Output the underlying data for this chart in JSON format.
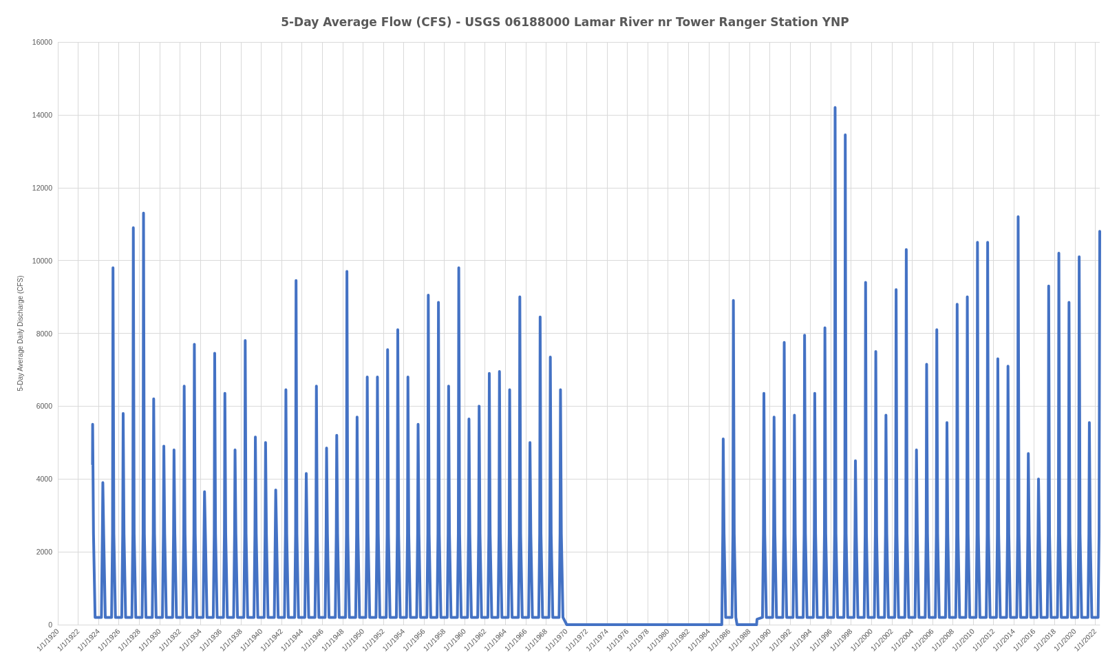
{
  "chart_data": {
    "type": "line",
    "title": "5-Day Average Flow (CFS) - USGS 06188000 Lamar River nr Tower Ranger Station YNP",
    "ylabel": "5-Day Average Daily Discharge (CFS)",
    "xlim": [
      "1920-01-01",
      "2022-06-13"
    ],
    "ylim": [
      0,
      16000
    ],
    "yticks": [
      0,
      2000,
      4000,
      6000,
      8000,
      10000,
      12000,
      14000,
      16000
    ],
    "grid": true,
    "marker": "none",
    "line_style": "solid",
    "xticks": [
      {
        "value": "1920-01-01",
        "label": "1/1/1920"
      },
      {
        "value": "1922-01-01",
        "label": "1/1/1922"
      },
      {
        "value": "1924-01-01",
        "label": "1/1/1924"
      },
      {
        "value": "1926-01-01",
        "label": "1/1/1926"
      },
      {
        "value": "1928-01-01",
        "label": "1/1/1928"
      },
      {
        "value": "1930-01-01",
        "label": "1/1/1930"
      },
      {
        "value": "1932-01-01",
        "label": "1/1/1932"
      },
      {
        "value": "1934-01-01",
        "label": "1/1/1934"
      },
      {
        "value": "1936-01-01",
        "label": "1/1/1936"
      },
      {
        "value": "1938-01-01",
        "label": "1/1/1938"
      },
      {
        "value": "1940-01-01",
        "label": "1/1/1940"
      },
      {
        "value": "1942-01-01",
        "label": "1/1/1942"
      },
      {
        "value": "1944-01-01",
        "label": "1/1/1944"
      },
      {
        "value": "1946-01-01",
        "label": "1/1/1946"
      },
      {
        "value": "1948-01-01",
        "label": "1/1/1948"
      },
      {
        "value": "1950-01-01",
        "label": "1/1/1950"
      },
      {
        "value": "1952-01-01",
        "label": "1/1/1952"
      },
      {
        "value": "1954-01-01",
        "label": "1/1/1954"
      },
      {
        "value": "1956-01-01",
        "label": "1/1/1956"
      },
      {
        "value": "1958-01-01",
        "label": "1/1/1958"
      },
      {
        "value": "1960-01-01",
        "label": "1/1/1960"
      },
      {
        "value": "1962-01-01",
        "label": "1/1/1962"
      },
      {
        "value": "1964-01-01",
        "label": "1/1/1964"
      },
      {
        "value": "1966-01-01",
        "label": "1/1/1966"
      },
      {
        "value": "1968-01-01",
        "label": "1/1/1968"
      },
      {
        "value": "1970-01-01",
        "label": "1/1/1970"
      },
      {
        "value": "1972-01-01",
        "label": "1/1/1972"
      },
      {
        "value": "1974-01-01",
        "label": "1/1/1974"
      },
      {
        "value": "1976-01-01",
        "label": "1/1/1976"
      },
      {
        "value": "1978-01-01",
        "label": "1/1/1978"
      },
      {
        "value": "1980-01-01",
        "label": "1/1/1980"
      },
      {
        "value": "1982-01-01",
        "label": "1/1/1982"
      },
      {
        "value": "1984-01-01",
        "label": "1/1/1984"
      },
      {
        "value": "1986-01-01",
        "label": "1/1/1986"
      },
      {
        "value": "1988-01-01",
        "label": "1/1/1988"
      },
      {
        "value": "1990-01-01",
        "label": "1/1/1990"
      },
      {
        "value": "1992-01-01",
        "label": "1/1/1992"
      },
      {
        "value": "1994-01-01",
        "label": "1/1/1994"
      },
      {
        "value": "1996-01-01",
        "label": "1/1/1996"
      },
      {
        "value": "1998-01-01",
        "label": "1/1/1998"
      },
      {
        "value": "2000-01-01",
        "label": "1/1/2000"
      },
      {
        "value": "2002-01-01",
        "label": "1/1/2002"
      },
      {
        "value": "2004-01-01",
        "label": "1/1/2004"
      },
      {
        "value": "2006-01-01",
        "label": "1/1/2006"
      },
      {
        "value": "2008-01-01",
        "label": "1/1/2008"
      },
      {
        "value": "2010-01-01",
        "label": "1/1/2010"
      },
      {
        "value": "2012-01-01",
        "label": "1/1/2012"
      },
      {
        "value": "2014-01-01",
        "label": "1/1/2014"
      },
      {
        "value": "2016-01-01",
        "label": "1/1/2016"
      },
      {
        "value": "2018-01-01",
        "label": "1/1/2018"
      },
      {
        "value": "2020-01-01",
        "label": "1/1/2020"
      },
      {
        "value": "2022-01-01",
        "label": "1/1/2022"
      }
    ],
    "series": [
      {
        "color": "#4472c4",
        "x": [
          "1923-06-01",
          "1923-06-05",
          "1923-07-05",
          "1923-09-01",
          "1924-04-15",
          "1924-05-20",
          "1924-06-05",
          "1924-07-05",
          "1924-09-01",
          "1925-04-15",
          "1925-05-20",
          "1925-06-05",
          "1925-07-05",
          "1925-09-01",
          "1926-04-15",
          "1926-05-20",
          "1926-06-05",
          "1926-07-05",
          "1926-09-01",
          "1927-04-15",
          "1927-05-20",
          "1927-06-05",
          "1927-07-05",
          "1927-09-01",
          "1928-04-15",
          "1928-05-20",
          "1928-06-05",
          "1928-07-05",
          "1928-09-01",
          "1929-04-15",
          "1929-05-20",
          "1929-06-05",
          "1929-07-05",
          "1929-09-01",
          "1930-04-15",
          "1930-05-20",
          "1930-06-05",
          "1930-07-05",
          "1930-09-01",
          "1931-04-15",
          "1931-05-20",
          "1931-06-05",
          "1931-07-05",
          "1931-09-01",
          "1932-04-15",
          "1932-05-20",
          "1932-06-05",
          "1932-07-05",
          "1932-09-01",
          "1933-04-15",
          "1933-05-20",
          "1933-06-05",
          "1933-07-05",
          "1933-09-01",
          "1934-04-15",
          "1934-05-20",
          "1934-06-05",
          "1934-07-05",
          "1934-09-01",
          "1935-04-15",
          "1935-05-20",
          "1935-06-05",
          "1935-07-05",
          "1935-09-01",
          "1936-04-15",
          "1936-05-20",
          "1936-06-05",
          "1936-07-05",
          "1936-09-01",
          "1937-04-15",
          "1937-05-20",
          "1937-06-05",
          "1937-07-05",
          "1937-09-01",
          "1938-04-15",
          "1938-05-20",
          "1938-06-05",
          "1938-07-05",
          "1938-09-01",
          "1939-04-15",
          "1939-05-20",
          "1939-06-05",
          "1939-07-05",
          "1939-09-01",
          "1940-04-15",
          "1940-05-20",
          "1940-06-05",
          "1940-07-05",
          "1940-09-01",
          "1941-04-15",
          "1941-05-20",
          "1941-06-05",
          "1941-07-05",
          "1941-09-01",
          "1942-04-15",
          "1942-05-20",
          "1942-06-05",
          "1942-07-05",
          "1942-09-01",
          "1943-04-15",
          "1943-05-20",
          "1943-06-05",
          "1943-07-05",
          "1943-09-01",
          "1944-04-15",
          "1944-05-20",
          "1944-06-05",
          "1944-07-05",
          "1944-09-01",
          "1945-04-15",
          "1945-05-20",
          "1945-06-05",
          "1945-07-05",
          "1945-09-01",
          "1946-04-15",
          "1946-05-20",
          "1946-06-05",
          "1946-07-05",
          "1946-09-01",
          "1947-04-15",
          "1947-05-20",
          "1947-06-05",
          "1947-07-05",
          "1947-09-01",
          "1948-04-15",
          "1948-05-20",
          "1948-06-05",
          "1948-07-05",
          "1948-09-01",
          "1949-04-15",
          "1949-05-20",
          "1949-06-05",
          "1949-07-05",
          "1949-09-01",
          "1950-04-15",
          "1950-05-20",
          "1950-06-05",
          "1950-07-05",
          "1950-09-01",
          "1951-04-15",
          "1951-05-20",
          "1951-06-05",
          "1951-07-05",
          "1951-09-01",
          "1952-04-15",
          "1952-05-20",
          "1952-06-05",
          "1952-07-05",
          "1952-09-01",
          "1953-04-15",
          "1953-05-20",
          "1953-06-05",
          "1953-07-05",
          "1953-09-01",
          "1954-04-15",
          "1954-05-20",
          "1954-06-05",
          "1954-07-05",
          "1954-09-01",
          "1955-04-15",
          "1955-05-20",
          "1955-06-05",
          "1955-07-05",
          "1955-09-01",
          "1956-04-15",
          "1956-05-20",
          "1956-06-05",
          "1956-07-05",
          "1956-09-01",
          "1957-04-15",
          "1957-05-20",
          "1957-06-05",
          "1957-07-05",
          "1957-09-01",
          "1958-04-15",
          "1958-05-20",
          "1958-06-05",
          "1958-07-05",
          "1958-09-01",
          "1959-04-15",
          "1959-05-20",
          "1959-06-05",
          "1959-07-05",
          "1959-09-01",
          "1960-04-15",
          "1960-05-20",
          "1960-06-05",
          "1960-07-05",
          "1960-09-01",
          "1961-04-15",
          "1961-05-20",
          "1961-06-05",
          "1961-07-05",
          "1961-09-01",
          "1962-04-15",
          "1962-05-20",
          "1962-06-05",
          "1962-07-05",
          "1962-09-01",
          "1963-04-15",
          "1963-05-20",
          "1963-06-05",
          "1963-07-05",
          "1963-09-01",
          "1964-04-15",
          "1964-05-20",
          "1964-06-05",
          "1964-07-05",
          "1964-09-01",
          "1965-04-15",
          "1965-05-20",
          "1965-06-05",
          "1965-07-05",
          "1965-09-01",
          "1966-04-15",
          "1966-05-20",
          "1966-06-05",
          "1966-07-05",
          "1966-09-01",
          "1967-04-15",
          "1967-05-20",
          "1967-06-05",
          "1967-07-05",
          "1967-09-01",
          "1968-04-15",
          "1968-05-20",
          "1968-06-05",
          "1968-07-05",
          "1968-09-01",
          "1969-04-15",
          "1969-05-20",
          "1969-06-05",
          "1969-07-05",
          "1969-09-01",
          "1970-01-15",
          "1985-04-15",
          "1985-05-20",
          "1985-06-05",
          "1985-07-05",
          "1985-09-01",
          "1986-04-15",
          "1986-05-20",
          "1986-06-05",
          "1986-07-05",
          "1986-09-01",
          "1986-10-15",
          "1988-09-15",
          "1988-10-01",
          "1989-04-15",
          "1989-05-20",
          "1989-06-05",
          "1989-07-05",
          "1989-09-01",
          "1990-04-15",
          "1990-05-20",
          "1990-06-05",
          "1990-07-05",
          "1990-09-01",
          "1991-04-15",
          "1991-05-20",
          "1991-06-05",
          "1991-07-05",
          "1991-09-01",
          "1992-04-15",
          "1992-05-20",
          "1992-06-05",
          "1992-07-05",
          "1992-09-01",
          "1993-04-15",
          "1993-05-20",
          "1993-06-05",
          "1993-07-05",
          "1993-09-01",
          "1994-04-15",
          "1994-05-20",
          "1994-06-05",
          "1994-07-05",
          "1994-09-01",
          "1995-04-15",
          "1995-05-20",
          "1995-06-05",
          "1995-07-05",
          "1995-09-01",
          "1996-04-15",
          "1996-05-20",
          "1996-06-05",
          "1996-07-05",
          "1996-09-01",
          "1997-04-15",
          "1997-05-20",
          "1997-06-05",
          "1997-07-05",
          "1997-09-01",
          "1998-04-15",
          "1998-05-20",
          "1998-06-05",
          "1998-07-05",
          "1998-09-01",
          "1999-04-15",
          "1999-05-20",
          "1999-06-05",
          "1999-07-05",
          "1999-09-01",
          "2000-04-15",
          "2000-05-20",
          "2000-06-05",
          "2000-07-05",
          "2000-09-01",
          "2001-04-15",
          "2001-05-20",
          "2001-06-05",
          "2001-07-05",
          "2001-09-01",
          "2002-04-15",
          "2002-05-20",
          "2002-06-05",
          "2002-07-05",
          "2002-09-01",
          "2003-04-15",
          "2003-05-20",
          "2003-06-05",
          "2003-07-05",
          "2003-09-01",
          "2004-04-15",
          "2004-05-20",
          "2004-06-05",
          "2004-07-05",
          "2004-09-01",
          "2005-04-15",
          "2005-05-20",
          "2005-06-05",
          "2005-07-05",
          "2005-09-01",
          "2006-04-15",
          "2006-05-20",
          "2006-06-05",
          "2006-07-05",
          "2006-09-01",
          "2007-04-15",
          "2007-05-20",
          "2007-06-05",
          "2007-07-05",
          "2007-09-01",
          "2008-04-15",
          "2008-05-20",
          "2008-06-05",
          "2008-07-05",
          "2008-09-01",
          "2009-04-15",
          "2009-05-20",
          "2009-06-05",
          "2009-07-05",
          "2009-09-01",
          "2010-04-15",
          "2010-05-20",
          "2010-06-05",
          "2010-07-05",
          "2010-09-01",
          "2011-04-15",
          "2011-05-20",
          "2011-06-05",
          "2011-07-05",
          "2011-09-01",
          "2012-04-15",
          "2012-05-20",
          "2012-06-05",
          "2012-07-05",
          "2012-09-01",
          "2013-04-15",
          "2013-05-20",
          "2013-06-05",
          "2013-07-05",
          "2013-09-01",
          "2014-04-15",
          "2014-05-20",
          "2014-06-05",
          "2014-07-05",
          "2014-09-01",
          "2015-04-15",
          "2015-05-20",
          "2015-06-05",
          "2015-07-05",
          "2015-09-01",
          "2016-04-15",
          "2016-05-20",
          "2016-06-05",
          "2016-07-05",
          "2016-09-01",
          "2017-04-15",
          "2017-05-20",
          "2017-06-05",
          "2017-07-05",
          "2017-09-01",
          "2018-04-15",
          "2018-05-20",
          "2018-06-05",
          "2018-07-05",
          "2018-09-01",
          "2019-04-15",
          "2019-05-20",
          "2019-06-05",
          "2019-07-05",
          "2019-09-01",
          "2020-04-15",
          "2020-05-20",
          "2020-06-05",
          "2020-07-05",
          "2020-09-01",
          "2021-04-15",
          "2021-05-20",
          "2021-06-05",
          "2021-07-05",
          "2021-09-01",
          "2022-04-15",
          "2022-05-20",
          "2022-06-13"
        ],
        "values": [
          4400,
          5500,
          2500,
          200,
          200,
          2500,
          3900,
          2500,
          200,
          200,
          2500,
          9800,
          2500,
          200,
          200,
          2500,
          5800,
          2500,
          200,
          200,
          2500,
          10900,
          2500,
          200,
          200,
          2500,
          11300,
          2500,
          200,
          200,
          2500,
          6200,
          2500,
          200,
          200,
          2500,
          4900,
          2500,
          200,
          200,
          2500,
          4800,
          2500,
          200,
          200,
          2500,
          6550,
          2500,
          200,
          200,
          2500,
          7700,
          2500,
          200,
          200,
          2500,
          3650,
          2500,
          200,
          200,
          2500,
          7450,
          2500,
          200,
          200,
          2500,
          6350,
          2500,
          200,
          200,
          2500,
          4800,
          2500,
          200,
          200,
          2500,
          7800,
          2500,
          200,
          200,
          2500,
          5150,
          2500,
          200,
          200,
          2500,
          5000,
          2500,
          200,
          200,
          2500,
          3700,
          2500,
          200,
          200,
          2500,
          6450,
          2500,
          200,
          200,
          2500,
          9450,
          2500,
          200,
          200,
          2500,
          4150,
          2500,
          200,
          200,
          2500,
          6550,
          2500,
          200,
          200,
          2500,
          4850,
          2500,
          200,
          200,
          2500,
          5200,
          2500,
          200,
          200,
          2500,
          9700,
          2500,
          200,
          200,
          2500,
          5700,
          2500,
          200,
          200,
          2500,
          6800,
          2500,
          200,
          200,
          2500,
          6800,
          2500,
          200,
          200,
          2500,
          7550,
          2500,
          200,
          200,
          2500,
          8100,
          2500,
          200,
          200,
          2500,
          6800,
          2500,
          200,
          200,
          2500,
          5500,
          2500,
          200,
          200,
          2500,
          9050,
          2500,
          200,
          200,
          2500,
          8850,
          2500,
          200,
          200,
          2500,
          6550,
          2500,
          200,
          200,
          2500,
          9800,
          2500,
          200,
          200,
          2500,
          5650,
          2500,
          200,
          200,
          2500,
          6000,
          2500,
          200,
          200,
          2500,
          6900,
          2500,
          200,
          200,
          2500,
          6950,
          2500,
          200,
          200,
          2500,
          6450,
          2500,
          200,
          200,
          2500,
          9000,
          2500,
          200,
          200,
          2500,
          5000,
          2500,
          200,
          200,
          2500,
          8450,
          2500,
          200,
          200,
          2500,
          7350,
          2500,
          200,
          200,
          2500,
          6450,
          2500,
          200,
          0,
          0,
          2500,
          5100,
          2500,
          200,
          200,
          2500,
          8900,
          2500,
          200,
          0,
          0,
          150,
          200,
          2500,
          6350,
          2500,
          200,
          200,
          2500,
          5700,
          2500,
          200,
          200,
          2500,
          7750,
          2500,
          200,
          200,
          2500,
          5750,
          2500,
          200,
          200,
          2500,
          7950,
          2500,
          200,
          200,
          2500,
          6350,
          2500,
          200,
          200,
          2500,
          8150,
          2500,
          200,
          200,
          2500,
          14200,
          2500,
          200,
          200,
          2500,
          13450,
          2500,
          200,
          200,
          2500,
          4500,
          2500,
          200,
          200,
          2500,
          9400,
          2500,
          200,
          200,
          2500,
          7500,
          2500,
          200,
          200,
          2500,
          5750,
          2500,
          200,
          200,
          2500,
          9200,
          2500,
          200,
          200,
          2500,
          10300,
          2500,
          200,
          200,
          2500,
          4800,
          2500,
          200,
          200,
          2500,
          7150,
          2500,
          200,
          200,
          2500,
          8100,
          2500,
          200,
          200,
          2500,
          5550,
          2500,
          200,
          200,
          2500,
          8800,
          2500,
          200,
          200,
          2500,
          9000,
          2500,
          200,
          200,
          2500,
          10500,
          2500,
          200,
          200,
          2500,
          10500,
          2500,
          200,
          200,
          2500,
          7300,
          2500,
          200,
          200,
          2500,
          7100,
          2500,
          200,
          200,
          2500,
          11200,
          2500,
          200,
          200,
          2500,
          4700,
          2500,
          200,
          200,
          2500,
          4000,
          2500,
          200,
          200,
          2500,
          9300,
          2500,
          200,
          200,
          2500,
          10200,
          2500,
          200,
          200,
          2500,
          8850,
          2500,
          200,
          200,
          2500,
          10100,
          2500,
          200,
          200,
          2500,
          5550,
          2500,
          200,
          200,
          2500,
          10800
        ]
      }
    ]
  }
}
